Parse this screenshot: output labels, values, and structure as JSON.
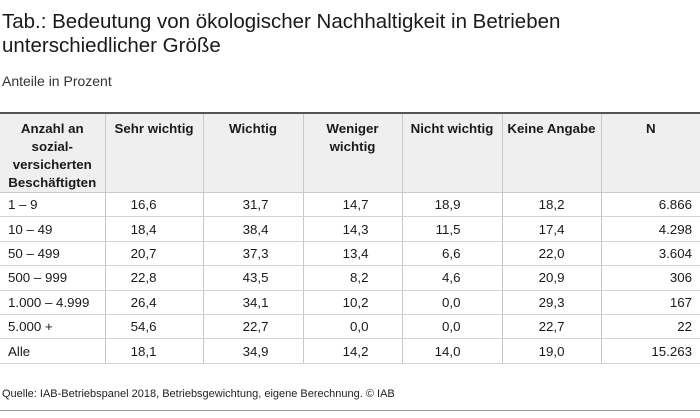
{
  "title": "Tab.: Bedeutung von ökologischer Nachhaltigkeit in Betrieben unterschiedlicher Größe",
  "subtitle": "Anteile in Prozent",
  "table": {
    "headers": [
      "Anzahl an sozial-versicherten Beschäftigten",
      "Sehr wichtig",
      "Wichtig",
      "Weniger wichtig",
      "Nicht wichtig",
      "Keine Angabe",
      "N"
    ],
    "rows": [
      [
        "1 – 9",
        "16,6",
        "31,7",
        "14,7",
        "18,9",
        "18,2",
        "6.866"
      ],
      [
        "10 – 49",
        "18,4",
        "38,4",
        "14,3",
        "11,5",
        "17,4",
        "4.298"
      ],
      [
        "50 – 499",
        "20,7",
        "37,3",
        "13,4",
        "6,6",
        "22,0",
        "3.604"
      ],
      [
        "500 – 999",
        "22,8",
        "43,5",
        "8,2",
        "4,6",
        "20,9",
        "306"
      ],
      [
        "1.000 – 4.999",
        "26,4",
        "34,1",
        "10,2",
        "0,0",
        "29,3",
        "167"
      ],
      [
        "5.000 +",
        "54,6",
        "22,7",
        "0,0",
        "0,0",
        "22,7",
        "22"
      ],
      [
        "Alle",
        "18,1",
        "34,9",
        "14,2",
        "14,0",
        "19,0",
        "15.263"
      ]
    ]
  },
  "source": "Quelle: IAB-Betriebspanel 2018, Betriebsgewichtung, eigene Berechnung. © IAB"
}
